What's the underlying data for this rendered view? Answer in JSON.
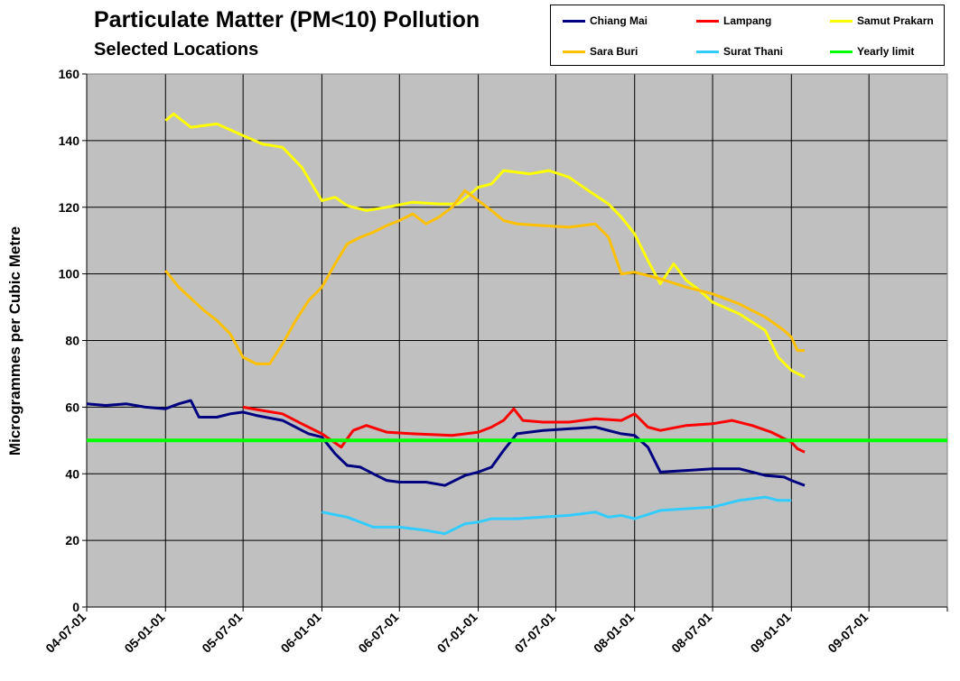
{
  "chart_data": {
    "type": "line",
    "title": "Particulate Matter (PM<10) Pollution",
    "subtitle": "Selected Locations",
    "ylabel": "Microgrammes per Cubic Metre",
    "xlabel": "",
    "ylim": [
      0,
      160
    ],
    "xlim": [
      "2004-07-01",
      "2009-12-31"
    ],
    "y_ticks": [
      0,
      20,
      40,
      60,
      80,
      100,
      120,
      140,
      160
    ],
    "x_ticks": [
      "04-07-01",
      "05-01-01",
      "05-07-01",
      "06-01-01",
      "06-07-01",
      "07-01-01",
      "07-07-01",
      "08-01-01",
      "08-07-01",
      "09-01-01",
      "09-07-01"
    ],
    "x_tick_dates": [
      "2004-07-01",
      "2005-01-01",
      "2005-07-01",
      "2006-01-01",
      "2006-07-01",
      "2007-01-01",
      "2007-07-01",
      "2008-01-01",
      "2008-07-01",
      "2009-01-01",
      "2009-07-01"
    ],
    "grid": "horizontal and vertical",
    "background": "#c0c0c0",
    "legend_position": "top-right",
    "series": [
      {
        "name": "Chiang Mai",
        "color": "#000080",
        "points": [
          [
            "2004-07-01",
            61
          ],
          [
            "2004-08-15",
            60.5
          ],
          [
            "2004-10-01",
            61
          ],
          [
            "2004-11-15",
            60
          ],
          [
            "2005-01-01",
            59.5
          ],
          [
            "2005-02-01",
            61
          ],
          [
            "2005-03-01",
            62
          ],
          [
            "2005-03-20",
            57
          ],
          [
            "2005-05-01",
            57
          ],
          [
            "2005-06-01",
            58
          ],
          [
            "2005-07-01",
            58.5
          ],
          [
            "2005-08-01",
            57.5
          ],
          [
            "2005-10-01",
            56
          ],
          [
            "2005-12-01",
            52
          ],
          [
            "2006-01-01",
            51
          ],
          [
            "2006-02-01",
            46
          ],
          [
            "2006-03-01",
            42.5
          ],
          [
            "2006-04-01",
            42
          ],
          [
            "2006-05-01",
            40
          ],
          [
            "2006-06-01",
            38
          ],
          [
            "2006-07-01",
            37.5
          ],
          [
            "2006-09-01",
            37.5
          ],
          [
            "2006-10-15",
            36.5
          ],
          [
            "2006-12-01",
            39.5
          ],
          [
            "2007-01-01",
            40.5
          ],
          [
            "2007-02-01",
            42
          ],
          [
            "2007-03-01",
            47
          ],
          [
            "2007-04-01",
            52
          ],
          [
            "2007-06-01",
            53
          ],
          [
            "2007-08-01",
            53.5
          ],
          [
            "2007-10-01",
            54
          ],
          [
            "2007-12-01",
            52
          ],
          [
            "2008-01-01",
            51.5
          ],
          [
            "2008-02-01",
            48
          ],
          [
            "2008-03-01",
            40.5
          ],
          [
            "2008-05-01",
            41
          ],
          [
            "2008-07-01",
            41.5
          ],
          [
            "2008-09-01",
            41.5
          ],
          [
            "2008-11-01",
            39.5
          ],
          [
            "2008-12-15",
            39
          ],
          [
            "2009-01-01",
            38
          ],
          [
            "2009-02-01",
            36.5
          ]
        ]
      },
      {
        "name": "Lampang",
        "color": "#ff0000",
        "points": [
          [
            "2005-07-01",
            60
          ],
          [
            "2005-08-15",
            59
          ],
          [
            "2005-10-01",
            58
          ],
          [
            "2005-11-15",
            55
          ],
          [
            "2006-01-01",
            52
          ],
          [
            "2006-02-15",
            48
          ],
          [
            "2006-03-15",
            53
          ],
          [
            "2006-04-15",
            54.5
          ],
          [
            "2006-06-01",
            52.5
          ],
          [
            "2006-08-01",
            52
          ],
          [
            "2006-11-01",
            51.5
          ],
          [
            "2007-01-01",
            52.5
          ],
          [
            "2007-02-01",
            54
          ],
          [
            "2007-03-01",
            56
          ],
          [
            "2007-03-25",
            59.5
          ],
          [
            "2007-04-15",
            56
          ],
          [
            "2007-06-01",
            55.5
          ],
          [
            "2007-08-01",
            55.5
          ],
          [
            "2007-10-01",
            56.5
          ],
          [
            "2007-12-01",
            56
          ],
          [
            "2008-01-01",
            58
          ],
          [
            "2008-02-01",
            54
          ],
          [
            "2008-03-01",
            53
          ],
          [
            "2008-05-01",
            54.5
          ],
          [
            "2008-07-01",
            55
          ],
          [
            "2008-08-15",
            56
          ],
          [
            "2008-10-01",
            54.5
          ],
          [
            "2008-11-15",
            52.5
          ],
          [
            "2009-01-01",
            49.5
          ],
          [
            "2009-01-15",
            47.5
          ],
          [
            "2009-02-01",
            46.5
          ]
        ]
      },
      {
        "name": "Samut Prakarn",
        "color": "#ffff00",
        "points": [
          [
            "2005-01-01",
            146
          ],
          [
            "2005-01-20",
            148
          ],
          [
            "2005-03-01",
            144
          ],
          [
            "2005-05-01",
            145
          ],
          [
            "2005-07-01",
            141.5
          ],
          [
            "2005-08-15",
            139
          ],
          [
            "2005-10-01",
            138
          ],
          [
            "2005-11-15",
            132
          ],
          [
            "2006-01-01",
            122
          ],
          [
            "2006-02-01",
            123
          ],
          [
            "2006-03-01",
            120.5
          ],
          [
            "2006-04-15",
            119
          ],
          [
            "2006-06-01",
            120
          ],
          [
            "2006-08-01",
            121.5
          ],
          [
            "2006-10-01",
            121
          ],
          [
            "2006-11-15",
            121
          ],
          [
            "2007-01-01",
            126
          ],
          [
            "2007-02-01",
            127
          ],
          [
            "2007-03-01",
            131
          ],
          [
            "2007-05-01",
            130
          ],
          [
            "2007-06-15",
            131
          ],
          [
            "2007-08-01",
            129
          ],
          [
            "2007-09-15",
            125
          ],
          [
            "2007-11-01",
            121
          ],
          [
            "2007-12-01",
            117
          ],
          [
            "2008-01-01",
            112
          ],
          [
            "2008-02-01",
            104
          ],
          [
            "2008-03-01",
            97
          ],
          [
            "2008-04-01",
            103
          ],
          [
            "2008-05-01",
            98
          ],
          [
            "2008-06-01",
            95
          ],
          [
            "2008-07-01",
            91.5
          ],
          [
            "2008-09-01",
            88
          ],
          [
            "2008-11-01",
            83
          ],
          [
            "2008-12-01",
            75
          ],
          [
            "2009-01-01",
            71
          ],
          [
            "2009-02-01",
            69
          ]
        ]
      },
      {
        "name": "Sara Buri",
        "color": "#ffc000",
        "points": [
          [
            "2005-01-01",
            101
          ],
          [
            "2005-02-01",
            96
          ],
          [
            "2005-04-01",
            89
          ],
          [
            "2005-05-01",
            86
          ],
          [
            "2005-06-01",
            82
          ],
          [
            "2005-07-01",
            75
          ],
          [
            "2005-08-01",
            73
          ],
          [
            "2005-09-01",
            73
          ],
          [
            "2005-10-01",
            79
          ],
          [
            "2005-11-01",
            86
          ],
          [
            "2005-12-01",
            92
          ],
          [
            "2006-01-01",
            96
          ],
          [
            "2006-02-01",
            103
          ],
          [
            "2006-03-01",
            109
          ],
          [
            "2006-04-01",
            111
          ],
          [
            "2006-05-01",
            112.5
          ],
          [
            "2006-06-01",
            114.5
          ],
          [
            "2006-07-01",
            116
          ],
          [
            "2006-08-01",
            118
          ],
          [
            "2006-09-01",
            115
          ],
          [
            "2006-10-01",
            117
          ],
          [
            "2006-11-01",
            120
          ],
          [
            "2006-12-01",
            125
          ],
          [
            "2007-01-01",
            122
          ],
          [
            "2007-02-01",
            119
          ],
          [
            "2007-03-01",
            116
          ],
          [
            "2007-04-01",
            115
          ],
          [
            "2007-06-01",
            114.5
          ],
          [
            "2007-08-01",
            114
          ],
          [
            "2007-10-01",
            115
          ],
          [
            "2007-11-01",
            111
          ],
          [
            "2007-12-01",
            100
          ],
          [
            "2008-01-01",
            100.5
          ],
          [
            "2008-02-01",
            99.5
          ],
          [
            "2008-03-01",
            98.5
          ],
          [
            "2008-05-01",
            96
          ],
          [
            "2008-07-01",
            94
          ],
          [
            "2008-09-01",
            91
          ],
          [
            "2008-11-01",
            87
          ],
          [
            "2008-12-15",
            83
          ],
          [
            "2009-01-01",
            81
          ],
          [
            "2009-01-15",
            77
          ],
          [
            "2009-02-01",
            77
          ]
        ]
      },
      {
        "name": "Surat Thani",
        "color": "#33ccff",
        "points": [
          [
            "2006-01-01",
            28.5
          ],
          [
            "2006-03-01",
            27
          ],
          [
            "2006-05-01",
            24
          ],
          [
            "2006-07-01",
            24
          ],
          [
            "2006-09-01",
            23
          ],
          [
            "2006-10-15",
            22
          ],
          [
            "2006-12-01",
            25
          ],
          [
            "2007-01-01",
            25.5
          ],
          [
            "2007-02-01",
            26.5
          ],
          [
            "2007-04-01",
            26.5
          ],
          [
            "2007-06-01",
            27
          ],
          [
            "2007-08-01",
            27.5
          ],
          [
            "2007-10-01",
            28.5
          ],
          [
            "2007-11-01",
            27
          ],
          [
            "2007-12-01",
            27.5
          ],
          [
            "2008-01-01",
            26.5
          ],
          [
            "2008-03-01",
            29
          ],
          [
            "2008-05-01",
            29.5
          ],
          [
            "2008-07-01",
            30
          ],
          [
            "2008-09-01",
            32
          ],
          [
            "2008-11-01",
            33
          ],
          [
            "2008-12-01",
            32
          ],
          [
            "2009-01-01",
            32
          ]
        ]
      },
      {
        "name": "Yearly limit",
        "color": "#00ff00",
        "points": [
          [
            "2004-07-01",
            50
          ],
          [
            "2009-12-31",
            50
          ]
        ]
      }
    ]
  }
}
